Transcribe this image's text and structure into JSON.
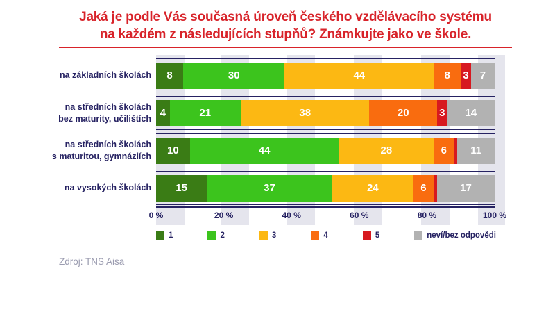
{
  "title": {
    "line1": "Jaká je podle Vás současná úroveň českého vzdělávacího systému",
    "line2": "na každém z následujících stupňů? Známkujte jako ve škole.",
    "color": "#d8232a"
  },
  "colors": {
    "accent_red": "#d8232a",
    "navy_text": "#262262",
    "grid_band": "#e5e5ed",
    "footer_text": "#9b9cb0",
    "footer_rule": "#dadae1"
  },
  "chart_data": {
    "type": "bar",
    "orientation": "horizontal-stacked",
    "unit": "%",
    "title": "Jaká je podle Vás současná úroveň českého vzdělávacího systému na každém z následujících stupňů? Známkujte jako ve škole.",
    "categories": [
      "na základních školách",
      "na středních školách\nbez maturity, učilištích",
      "na středních školách\ns maturitou, gymnáziích",
      "na vysokých školách"
    ],
    "series": [
      {
        "name": "1",
        "color": "#3a7c15",
        "values": [
          8,
          4,
          10,
          15
        ]
      },
      {
        "name": "2",
        "color": "#3cc41d",
        "values": [
          30,
          21,
          44,
          37
        ]
      },
      {
        "name": "3",
        "color": "#fcb813",
        "values": [
          44,
          38,
          28,
          24
        ]
      },
      {
        "name": "4",
        "color": "#f96c0f",
        "values": [
          8,
          20,
          6,
          6
        ]
      },
      {
        "name": "5",
        "color": "#d71920",
        "values": [
          3,
          3,
          1,
          1
        ]
      },
      {
        "name": "neví/bez odpovědi",
        "color": "#b2b2b2",
        "values": [
          7,
          14,
          11,
          17
        ]
      }
    ],
    "xlim": [
      0,
      100
    ],
    "xticks": [
      "0 %",
      "20 %",
      "40 %",
      "60 %",
      "80 %",
      "100 %"
    ],
    "xtick_positions_pct": [
      0,
      20,
      40,
      60,
      80,
      100
    ],
    "legend_position": "bottom",
    "value_label_min_show": 3,
    "grid": "vertical-bands",
    "gridbands_pct": [
      [
        0,
        8.4
      ],
      [
        19.0,
        27.4
      ],
      [
        38.5,
        46.9
      ],
      [
        58.4,
        66.8
      ],
      [
        78.3,
        86.7
      ],
      [
        95.1,
        103.0
      ]
    ]
  },
  "footer": {
    "source": "Zdroj: TNS Aisa"
  }
}
